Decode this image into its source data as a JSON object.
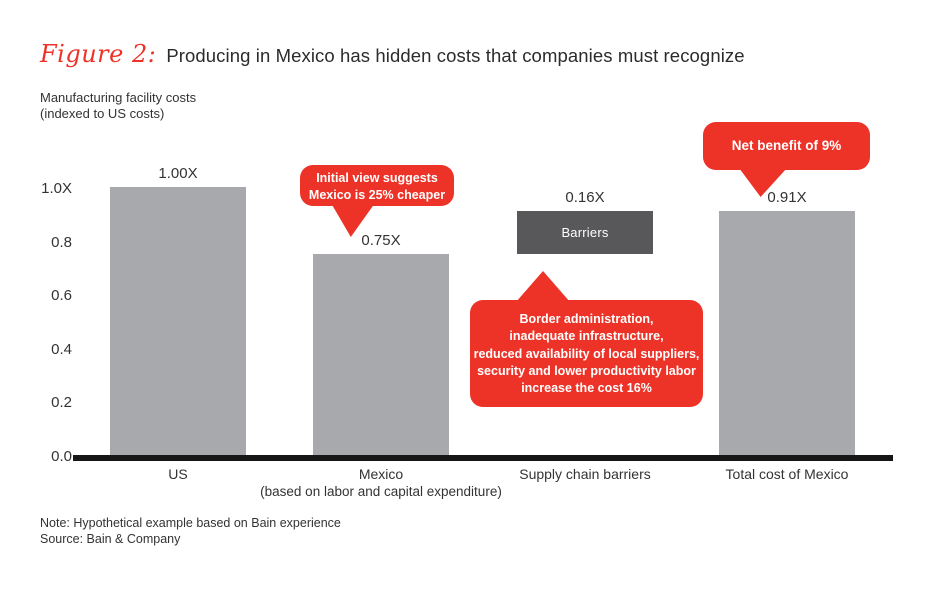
{
  "figure": {
    "label": "Figure 2:",
    "title": "Producing in Mexico has hidden costs that companies must recognize"
  },
  "chart_data": {
    "type": "bar",
    "title": "Producing in Mexico has hidden costs that companies must recognize",
    "ylabel_lines": [
      "Manufacturing facility costs",
      "(indexed to US costs)"
    ],
    "ylim": [
      0,
      1.0
    ],
    "yticks": [
      "1.0X",
      "0.8",
      "0.6",
      "0.4",
      "0.2",
      "0.0"
    ],
    "ytick_values": [
      1.0,
      0.8,
      0.6,
      0.4,
      0.2,
      0.0
    ],
    "grid": false,
    "bar_color": "#a8a9ac",
    "barrier_color": "#58585a",
    "accent_red": "#ed3328",
    "bars": [
      {
        "category": "US",
        "value": 1.0,
        "value_label": "1.00X",
        "style": "solid"
      },
      {
        "category": "Mexico (based on labor and capital expenditure)",
        "value": 0.75,
        "value_label": "0.75X",
        "style": "solid"
      },
      {
        "category": "Supply chain barriers",
        "value": 0.16,
        "value_label": "0.16X",
        "bar_text": "Barriers",
        "style": "floating",
        "float_bottom": 0.75,
        "float_top": 0.91
      },
      {
        "category": "Total cost of Mexico",
        "value": 0.91,
        "value_label": "0.91X",
        "style": "solid"
      }
    ],
    "xlabels": [
      {
        "line1": "US",
        "line2": ""
      },
      {
        "line1": "Mexico",
        "line2": "(based on labor and capital expenditure)"
      },
      {
        "line1": "Supply chain barriers",
        "line2": ""
      },
      {
        "line1": "Total cost of Mexico",
        "line2": ""
      }
    ],
    "callouts": [
      {
        "lines": [
          "Initial view suggests",
          "Mexico is 25% cheaper"
        ]
      },
      {
        "lines": [
          "Border administration,",
          "inadequate infrastructure,",
          "reduced availability of local suppliers,",
          "security and lower productivity labor",
          "increase the cost 16%"
        ]
      },
      {
        "lines": [
          "Net benefit of 9%"
        ]
      }
    ]
  },
  "footer": {
    "note": "Note: Hypothetical example based on Bain experience",
    "source": "Source: Bain & Company"
  }
}
